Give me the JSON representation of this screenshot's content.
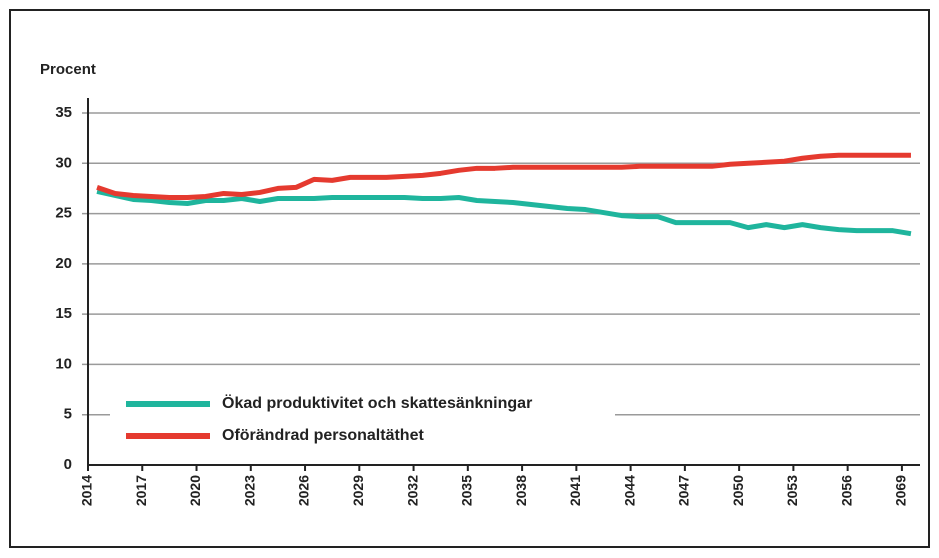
{
  "chart_data": {
    "type": "line",
    "y_label": "Procent",
    "categories": [
      "2014",
      null,
      null,
      "2017",
      null,
      null,
      "2020",
      null,
      null,
      "2023",
      null,
      null,
      "2026",
      null,
      null,
      "2029",
      null,
      null,
      "2032",
      null,
      null,
      "2035",
      null,
      null,
      "2038",
      null,
      null,
      "2041",
      null,
      null,
      "2044",
      null,
      null,
      "2047",
      null,
      null,
      "2050",
      null,
      null,
      "2053",
      null,
      null,
      "2056",
      null,
      null,
      "2069"
    ],
    "series": [
      {
        "name": "Ökad produktivitet och skattesänkningar",
        "color": "#1fb59d",
        "values": [
          27.2,
          26.8,
          26.4,
          26.3,
          26.1,
          26.0,
          26.3,
          26.3,
          26.5,
          26.2,
          26.5,
          26.5,
          26.5,
          26.6,
          26.6,
          26.6,
          26.6,
          26.6,
          26.5,
          26.5,
          26.6,
          26.3,
          26.2,
          26.1,
          25.9,
          25.7,
          25.5,
          25.4,
          25.1,
          24.8,
          24.7,
          24.7,
          24.1,
          24.1,
          24.1,
          24.1,
          23.6,
          23.9,
          23.6,
          23.9,
          23.6,
          23.4,
          23.3,
          23.3,
          23.3,
          23.0
        ]
      },
      {
        "name": "Oförändrad personaltäthet",
        "color": "#e53a2f",
        "values": [
          27.6,
          27.0,
          26.8,
          26.7,
          26.6,
          26.6,
          26.7,
          27.0,
          26.9,
          27.1,
          27.5,
          27.6,
          28.4,
          28.3,
          28.6,
          28.6,
          28.6,
          28.7,
          28.8,
          29.0,
          29.3,
          29.5,
          29.5,
          29.6,
          29.6,
          29.6,
          29.6,
          29.6,
          29.6,
          29.6,
          29.7,
          29.7,
          29.7,
          29.7,
          29.7,
          29.9,
          30.0,
          30.1,
          30.2,
          30.5,
          30.7,
          30.8,
          30.8,
          30.8,
          30.8,
          30.8
        ]
      }
    ],
    "ylim": [
      0,
      35
    ],
    "yticks": [
      0,
      5,
      10,
      15,
      20,
      25,
      30,
      35
    ],
    "grid": true
  }
}
